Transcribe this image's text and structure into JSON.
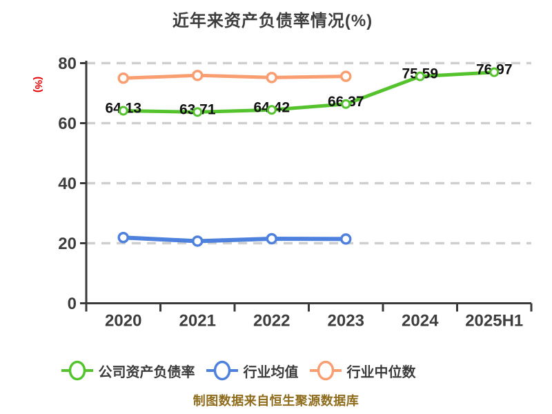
{
  "title": "近年来资产负债率情况(%)",
  "y_axis_label": "(%)",
  "caption": "制图数据来自恒生聚源数据库",
  "colors": {
    "background": "#ffffff",
    "title_text": "#3d3d3d",
    "axis": "#3a3a3a",
    "tick_label": "#3d3d3d",
    "gridline": "#cfcfcf",
    "data_label": "#111111",
    "y_axis_label": "#e60000",
    "caption_text": "#8f6c1c",
    "legend_text": "#3b3b3b",
    "marker_fill": "#ffffff"
  },
  "chart_data": {
    "type": "line",
    "title": "近年来资产负债率情况(%)",
    "categories": [
      "2020",
      "2021",
      "2022",
      "2023",
      "2024",
      "2025H1"
    ],
    "series": [
      {
        "name": "公司资产负债率",
        "color": "#55c32d",
        "values": [
          64.13,
          63.71,
          64.42,
          66.37,
          75.59,
          76.97
        ],
        "data_labels": [
          "64.13",
          "63.71",
          "64.42",
          "66.37",
          "75.59",
          "76.97"
        ],
        "data_labels_visible": true
      },
      {
        "name": "行业均值",
        "color": "#4e80dd",
        "values": [
          21.9,
          20.7,
          21.5,
          21.4
        ],
        "data_labels_visible": false
      },
      {
        "name": "行业中位数",
        "color": "#f99e71",
        "values": [
          75.0,
          75.9,
          75.2,
          75.6
        ],
        "data_labels_visible": false
      }
    ],
    "xlabel": "",
    "ylabel": "(%)",
    "ylim": [
      0,
      80
    ],
    "yticks": [
      0,
      20,
      40,
      60,
      80
    ],
    "grid": "horizontal-dashed",
    "legend_position": "bottom"
  }
}
